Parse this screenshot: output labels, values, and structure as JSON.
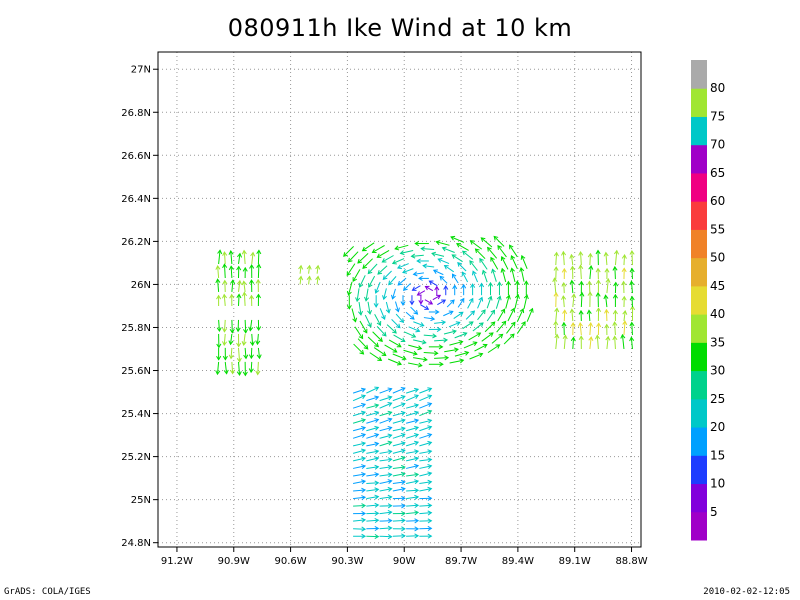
{
  "footer": {
    "left": "GrADS: COLA/IGES",
    "right": "2010-02-02-12:05"
  },
  "colors": {
    "palette": [
      "#a000c8",
      "#8200dc",
      "#1e3cff",
      "#00a0ff",
      "#00c8c8",
      "#00d28c",
      "#00dc00",
      "#a0e632",
      "#e6dc32",
      "#e6af2d",
      "#f08228",
      "#fa3c3c",
      "#f00082",
      "#a000c8",
      "#00c8c8",
      "#a0e632",
      "#aaaaaa"
    ]
  },
  "chart_data": {
    "type": "vector",
    "title": "080911h Ike Wind at 10 km",
    "xlim": [
      -91.3,
      -88.75
    ],
    "ylim": [
      24.78,
      27.08
    ],
    "x_ticks": [
      {
        "value": -91.2,
        "label": "91.2W"
      },
      {
        "value": -90.9,
        "label": "90.9W"
      },
      {
        "value": -90.6,
        "label": "90.6W"
      },
      {
        "value": -90.3,
        "label": "90.3W"
      },
      {
        "value": -90.0,
        "label": "90W"
      },
      {
        "value": -89.7,
        "label": "89.7W"
      },
      {
        "value": -89.4,
        "label": "89.4W"
      },
      {
        "value": -89.1,
        "label": "89.1W"
      },
      {
        "value": -88.8,
        "label": "88.8W"
      }
    ],
    "y_ticks": [
      {
        "value": 24.8,
        "label": "24.8N"
      },
      {
        "value": 25.0,
        "label": "25N"
      },
      {
        "value": 25.2,
        "label": "25.2N"
      },
      {
        "value": 25.4,
        "label": "25.4N"
      },
      {
        "value": 25.6,
        "label": "25.6N"
      },
      {
        "value": 25.8,
        "label": "25.8N"
      },
      {
        "value": 26.0,
        "label": "26N"
      },
      {
        "value": 26.2,
        "label": "26.2N"
      },
      {
        "value": 26.4,
        "label": "26.4N"
      },
      {
        "value": 26.6,
        "label": "26.6N"
      },
      {
        "value": 26.8,
        "label": "26.8N"
      },
      {
        "value": 27.0,
        "label": "27N"
      }
    ],
    "grid": true,
    "colorbar": {
      "labels": [
        "5",
        "10",
        "15",
        "20",
        "25",
        "30",
        "35",
        "40",
        "45",
        "50",
        "55",
        "60",
        "65",
        "70",
        "75",
        "80"
      ],
      "bins": 17
    },
    "vortex_center": {
      "lon": -89.87,
      "lat": 25.95
    },
    "regions": [
      {
        "name": "west-band",
        "lon": [
          -91.0,
          -90.73
        ],
        "lat": [
          25.62,
          26.18
        ],
        "dir": "meridional",
        "speed": 34
      },
      {
        "name": "east-band",
        "lon": [
          -89.2,
          -88.75
        ],
        "lat": [
          25.68,
          26.18
        ],
        "dir": "meridional",
        "speed": 35
      },
      {
        "name": "south-block",
        "lon": [
          -90.3,
          -89.85
        ],
        "lat": [
          24.82,
          25.55
        ],
        "dir": "zonal",
        "speed": 23
      }
    ]
  }
}
